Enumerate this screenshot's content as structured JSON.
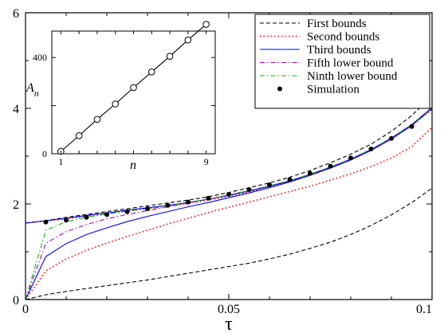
{
  "chart_data": [
    {
      "type": "line",
      "xlabel": "τ",
      "ylabel": "",
      "xlim": [
        0,
        0.1
      ],
      "ylim": [
        0,
        6
      ],
      "x_ticks": [
        0,
        0.05,
        0.1
      ],
      "x_tick_labels": [
        "0",
        "0.05",
        "0.1"
      ],
      "y_ticks": [
        0,
        2,
        4,
        6
      ],
      "y_tick_labels": [
        "0",
        "2",
        "4",
        "6"
      ],
      "grid": false,
      "legend_position": "top-right",
      "series": [
        {
          "name": "First bounds",
          "color": "#000000",
          "dash": "dashed",
          "lines": [
            {
              "x": [
                0,
                0.005,
                0.01,
                0.015,
                0.02,
                0.025,
                0.03,
                0.035,
                0.04,
                0.045,
                0.05,
                0.055,
                0.06,
                0.065,
                0.07,
                0.075,
                0.08,
                0.085,
                0.09,
                0.095,
                0.1
              ],
              "y": [
                1.6,
                1.65,
                1.72,
                1.78,
                1.84,
                1.9,
                1.96,
                2.02,
                2.08,
                2.15,
                2.24,
                2.34,
                2.44,
                2.56,
                2.7,
                2.86,
                3.04,
                3.25,
                3.52,
                3.85,
                4.25
              ]
            },
            {
              "x": [
                0,
                0.005,
                0.01,
                0.015,
                0.02,
                0.025,
                0.03,
                0.035,
                0.04,
                0.045,
                0.05,
                0.055,
                0.06,
                0.065,
                0.07,
                0.075,
                0.08,
                0.085,
                0.09,
                0.095,
                0.1
              ],
              "y": [
                0,
                0.1,
                0.17,
                0.23,
                0.29,
                0.35,
                0.41,
                0.48,
                0.55,
                0.62,
                0.69,
                0.76,
                0.85,
                0.95,
                1.07,
                1.2,
                1.36,
                1.55,
                1.77,
                2.03,
                2.33
              ]
            }
          ]
        },
        {
          "name": "Second bounds",
          "color": "#ff0000",
          "dash": "dotted",
          "lines": [
            {
              "x": [
                0,
                0.005,
                0.01,
                0.015,
                0.02,
                0.025,
                0.03,
                0.035,
                0.04,
                0.045,
                0.05,
                0.055,
                0.06,
                0.065,
                0.07,
                0.075,
                0.08,
                0.085,
                0.09,
                0.095,
                0.1
              ],
              "y": [
                0,
                0.6,
                0.85,
                1.03,
                1.18,
                1.32,
                1.45,
                1.58,
                1.7,
                1.82,
                1.93,
                2.04,
                2.15,
                2.26,
                2.37,
                2.5,
                2.63,
                2.78,
                2.96,
                3.2,
                3.6
              ]
            },
            {
              "x": [
                0,
                0.005,
                0.01,
                0.015,
                0.02,
                0.025,
                0.03,
                0.035,
                0.04,
                0.045,
                0.05,
                0.055,
                0.06,
                0.065,
                0.07,
                0.075,
                0.08,
                0.085,
                0.09,
                0.095,
                0.1
              ],
              "y": [
                1.6,
                1.64,
                1.69,
                1.74,
                1.79,
                1.85,
                1.9,
                1.95,
                2.01,
                2.08,
                2.16,
                2.25,
                2.35,
                2.46,
                2.6,
                2.75,
                2.92,
                3.12,
                3.36,
                3.64,
                3.98
              ]
            }
          ]
        },
        {
          "name": "Third bounds",
          "color": "#0000ff",
          "dash": "solid",
          "lines": [
            {
              "x": [
                0,
                0.005,
                0.01,
                0.015,
                0.02,
                0.025,
                0.03,
                0.035,
                0.04,
                0.045,
                0.05,
                0.055,
                0.06,
                0.065,
                0.07,
                0.075,
                0.08,
                0.085,
                0.09,
                0.095,
                0.1
              ],
              "y": [
                0,
                0.9,
                1.17,
                1.36,
                1.5,
                1.63,
                1.74,
                1.84,
                1.94,
                2.03,
                2.13,
                2.23,
                2.34,
                2.46,
                2.6,
                2.75,
                2.92,
                3.12,
                3.36,
                3.64,
                4.0
              ]
            },
            {
              "x": [
                0,
                0.005,
                0.01,
                0.015,
                0.02,
                0.025,
                0.03,
                0.035,
                0.04,
                0.045,
                0.05,
                0.055,
                0.06,
                0.065,
                0.07,
                0.075,
                0.08,
                0.085,
                0.09,
                0.095,
                0.1
              ],
              "y": [
                1.6,
                1.65,
                1.7,
                1.76,
                1.81,
                1.87,
                1.92,
                1.97,
                2.03,
                2.1,
                2.18,
                2.27,
                2.37,
                2.48,
                2.62,
                2.77,
                2.94,
                3.14,
                3.38,
                3.66,
                4.02
              ]
            }
          ]
        },
        {
          "name": "Fifth lower bound",
          "color": "#aa00cc",
          "dash": "dashdot",
          "lines": [
            {
              "x": [
                0,
                0.005,
                0.01,
                0.015,
                0.02,
                0.025,
                0.03,
                0.035,
                0.04,
                0.045,
                0.05,
                0.055,
                0.06,
                0.065,
                0.07,
                0.075,
                0.08,
                0.085,
                0.09,
                0.095,
                0.1
              ],
              "y": [
                0,
                1.18,
                1.42,
                1.57,
                1.69,
                1.78,
                1.86,
                1.94,
                2.02,
                2.1,
                2.19,
                2.28,
                2.38,
                2.49,
                2.62,
                2.77,
                2.94,
                3.14,
                3.38,
                3.66,
                4.02
              ]
            }
          ]
        },
        {
          "name": "Ninth lower bound",
          "color": "#00bb00",
          "dash": "dashdot",
          "lines": [
            {
              "x": [
                0,
                0.005,
                0.01,
                0.015,
                0.02,
                0.025,
                0.03,
                0.035,
                0.04,
                0.045,
                0.05,
                0.055,
                0.06,
                0.065,
                0.07,
                0.075,
                0.08,
                0.085,
                0.09,
                0.095,
                0.1
              ],
              "y": [
                0,
                1.45,
                1.63,
                1.72,
                1.79,
                1.85,
                1.9,
                1.96,
                2.03,
                2.1,
                2.19,
                2.28,
                2.38,
                2.49,
                2.62,
                2.77,
                2.94,
                3.14,
                3.38,
                3.66,
                4.02
              ]
            }
          ]
        },
        {
          "name": "Simulation",
          "color": "#000000",
          "marker": "filled-circle",
          "points": {
            "x": [
              0.005,
              0.01,
              0.015,
              0.02,
              0.025,
              0.03,
              0.035,
              0.04,
              0.045,
              0.05,
              0.055,
              0.06,
              0.065,
              0.07,
              0.075,
              0.08,
              0.085,
              0.09,
              0.095
            ],
            "y": [
              1.62,
              1.66,
              1.72,
              1.78,
              1.84,
              1.9,
              1.97,
              2.04,
              2.12,
              2.2,
              2.3,
              2.4,
              2.51,
              2.64,
              2.79,
              2.96,
              3.15,
              3.37,
              3.62
            ]
          }
        }
      ]
    },
    {
      "type": "line",
      "placement": "inset-top-left",
      "xlabel": "n",
      "ylabel": "A",
      "ylabel_subscript": "n",
      "xlim": [
        0.5,
        9.5
      ],
      "ylim": [
        0,
        510
      ],
      "x_ticks": [
        1,
        2,
        3,
        4,
        5,
        6,
        7,
        8,
        9
      ],
      "x_tick_labels": [
        "1",
        "",
        "",
        "",
        "",
        "",
        "",
        "",
        "9"
      ],
      "y_ticks": [
        0,
        200,
        400
      ],
      "y_tick_labels": [
        "0",
        "",
        "400"
      ],
      "series": [
        {
          "marker": "open-circle",
          "color": "#000000",
          "x": [
            1,
            2,
            3,
            4,
            5,
            6,
            7,
            8,
            9
          ],
          "y": [
            10,
            75,
            143,
            207,
            275,
            340,
            405,
            473,
            538
          ]
        }
      ]
    }
  ]
}
